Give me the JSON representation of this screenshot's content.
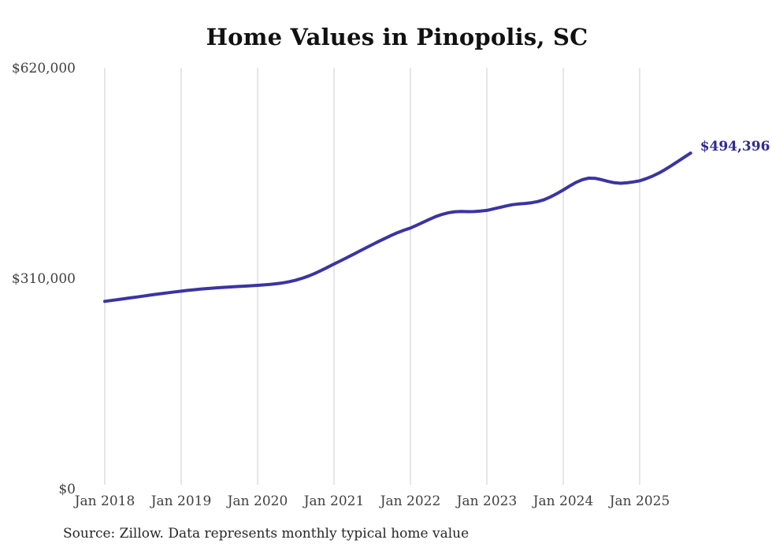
{
  "header": {
    "title": "Home Values in Pinopolis, SC"
  },
  "footer": {
    "source": "Source: Zillow. Data represents monthly typical home value"
  },
  "chart_data": {
    "type": "line",
    "title": "Home Values in Pinopolis, SC",
    "series_name": "Monthly typical home value",
    "xlabel": "",
    "ylabel": "",
    "ylim": [
      0,
      620000
    ],
    "grid": "vertical-only",
    "legend": "none",
    "end_label": "$494,396",
    "end_value": 494396,
    "line_color": "#3a34a3",
    "end_label_color": "#2f2b8e",
    "grid_color": "#cccccc",
    "tick_color": "#3f3f3f",
    "x_tick_labels": [
      "Jan 2018",
      "Jan 2019",
      "Jan 2020",
      "Jan 2021",
      "Jan 2022",
      "Jan 2023",
      "Jan 2024",
      "Jan 2025"
    ],
    "y_ticks": [
      {
        "value": 0,
        "label": "$0"
      },
      {
        "value": 310000,
        "label": "$310,000"
      },
      {
        "value": 620000,
        "label": "$620,000"
      }
    ],
    "months": [
      "2018-01",
      "2018-02",
      "2018-03",
      "2018-04",
      "2018-05",
      "2018-06",
      "2018-07",
      "2018-08",
      "2018-09",
      "2018-10",
      "2018-11",
      "2018-12",
      "2019-01",
      "2019-02",
      "2019-03",
      "2019-04",
      "2019-05",
      "2019-06",
      "2019-07",
      "2019-08",
      "2019-09",
      "2019-10",
      "2019-11",
      "2019-12",
      "2020-01",
      "2020-02",
      "2020-03",
      "2020-04",
      "2020-05",
      "2020-06",
      "2020-07",
      "2020-08",
      "2020-09",
      "2020-10",
      "2020-11",
      "2020-12",
      "2021-01",
      "2021-02",
      "2021-03",
      "2021-04",
      "2021-05",
      "2021-06",
      "2021-07",
      "2021-08",
      "2021-09",
      "2021-10",
      "2021-11",
      "2021-12",
      "2022-01",
      "2022-02",
      "2022-03",
      "2022-04",
      "2022-05",
      "2022-06",
      "2022-07",
      "2022-08",
      "2022-09",
      "2022-10",
      "2022-11",
      "2022-12",
      "2023-01",
      "2023-02",
      "2023-03",
      "2023-04",
      "2023-05",
      "2023-06",
      "2023-07",
      "2023-08",
      "2023-09",
      "2023-10",
      "2023-11",
      "2023-12",
      "2024-01",
      "2024-02",
      "2024-03",
      "2024-04",
      "2024-05",
      "2024-06",
      "2024-07",
      "2024-08",
      "2024-09",
      "2024-10",
      "2024-11",
      "2024-12",
      "2025-01",
      "2025-02",
      "2025-03",
      "2025-04",
      "2025-05",
      "2025-06",
      "2025-07",
      "2025-08",
      "2025-09"
    ],
    "values": [
      276000,
      277300,
      278500,
      279800,
      281100,
      282400,
      283700,
      285000,
      286300,
      287500,
      288700,
      289900,
      291000,
      292100,
      293100,
      294000,
      294800,
      295500,
      296200,
      296800,
      297400,
      297900,
      298400,
      299000,
      299600,
      300300,
      301100,
      302000,
      303300,
      305000,
      307200,
      310000,
      313300,
      317200,
      321500,
      326100,
      331000,
      335600,
      340300,
      345100,
      349900,
      354700,
      359500,
      364200,
      368800,
      373200,
      377200,
      380800,
      384000,
      388100,
      392500,
      396900,
      400900,
      404200,
      406600,
      408000,
      408400,
      408100,
      408200,
      408900,
      410000,
      412000,
      414300,
      416500,
      418300,
      419500,
      420200,
      421200,
      423000,
      425800,
      429800,
      434700,
      440000,
      445800,
      451200,
      455300,
      457400,
      457200,
      455200,
      452700,
      450700,
      449900,
      450600,
      451900,
      453500,
      456600,
      460400,
      464900,
      470100,
      475900,
      482100,
      488300,
      494396
    ]
  }
}
